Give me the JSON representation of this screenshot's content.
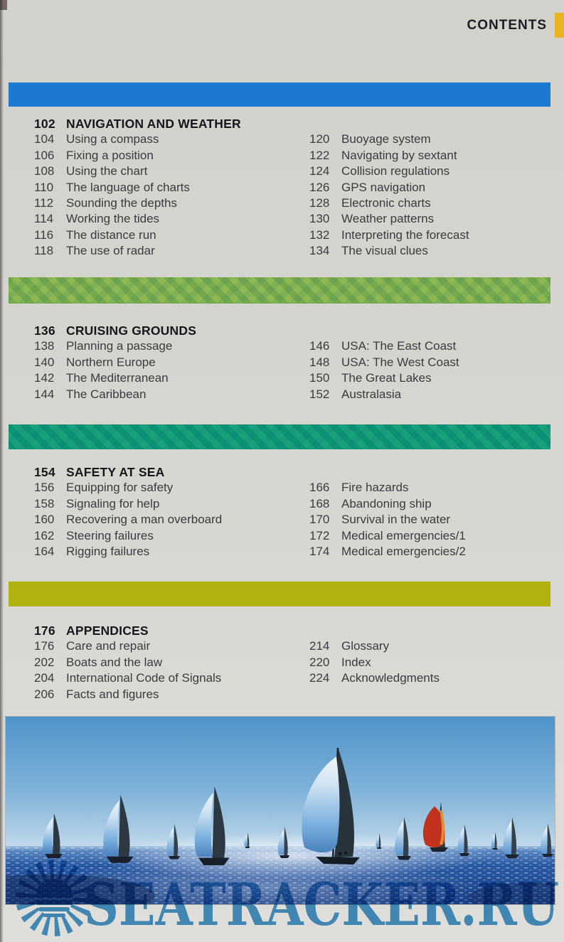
{
  "header": {
    "title": "CONTENTS"
  },
  "colors": {
    "page_bg": "#d6d5d0",
    "tab_yellow": "#e9b41f",
    "divider_blue": "#1b7ad0",
    "divider_green": "#86b548",
    "divider_teal": "#0d9c75",
    "divider_olive": "#b0b211",
    "watermark_blue": "#3a92cc",
    "heading_text": "#17171a",
    "body_text": "#3b3b3d"
  },
  "sections": [
    {
      "page": "102",
      "title": "NAVIGATION AND WEATHER",
      "left": [
        {
          "page": "104",
          "label": "Using a compass"
        },
        {
          "page": "106",
          "label": "Fixing a position"
        },
        {
          "page": "108",
          "label": "Using the chart"
        },
        {
          "page": "110",
          "label": "The language of charts"
        },
        {
          "page": "112",
          "label": "Sounding the depths"
        },
        {
          "page": "114",
          "label": "Working the tides"
        },
        {
          "page": "116",
          "label": "The distance run"
        },
        {
          "page": "118",
          "label": "The use of radar"
        }
      ],
      "right": [
        {
          "page": "120",
          "label": "Buoyage system"
        },
        {
          "page": "122",
          "label": "Navigating by sextant"
        },
        {
          "page": "124",
          "label": "Collision regulations"
        },
        {
          "page": "126",
          "label": "GPS navigation"
        },
        {
          "page": "128",
          "label": "Electronic charts"
        },
        {
          "page": "130",
          "label": "Weather patterns"
        },
        {
          "page": "132",
          "label": "Interpreting the forecast"
        },
        {
          "page": "134",
          "label": "The visual clues"
        }
      ]
    },
    {
      "page": "136",
      "title": "CRUISING GROUNDS",
      "left": [
        {
          "page": "138",
          "label": "Planning a passage"
        },
        {
          "page": "140",
          "label": "Northern Europe"
        },
        {
          "page": "142",
          "label": "The Mediterranean"
        },
        {
          "page": "144",
          "label": "The Caribbean"
        }
      ],
      "right": [
        {
          "page": "146",
          "label": "USA: The East Coast"
        },
        {
          "page": "148",
          "label": "USA: The West Coast"
        },
        {
          "page": "150",
          "label": "The Great Lakes"
        },
        {
          "page": "152",
          "label": "Australasia"
        }
      ]
    },
    {
      "page": "154",
      "title": "SAFETY AT SEA",
      "left": [
        {
          "page": "156",
          "label": "Equipping for safety"
        },
        {
          "page": "158",
          "label": "Signaling for help"
        },
        {
          "page": "160",
          "label": "Recovering a man overboard"
        },
        {
          "page": "162",
          "label": "Steering failures"
        },
        {
          "page": "164",
          "label": "Rigging failures"
        }
      ],
      "right": [
        {
          "page": "166",
          "label": "Fire hazards"
        },
        {
          "page": "168",
          "label": "Abandoning ship"
        },
        {
          "page": "170",
          "label": "Survival in the water"
        },
        {
          "page": "172",
          "label": "Medical emergencies/1"
        },
        {
          "page": "174",
          "label": "Medical emergencies/2"
        }
      ]
    },
    {
      "page": "176",
      "title": "APPENDICES",
      "left": [
        {
          "page": "176",
          "label": "Care and repair"
        },
        {
          "page": "202",
          "label": "Boats and the law"
        },
        {
          "page": "204",
          "label": "International Code of Signals"
        },
        {
          "page": "206",
          "label": "Facts and figures"
        }
      ],
      "right": [
        {
          "page": "214",
          "label": "Glossary"
        },
        {
          "page": "220",
          "label": "Index"
        },
        {
          "page": "224",
          "label": "Acknowledgments"
        }
      ]
    }
  ],
  "watermark": {
    "text": "SEATRACKER.RU",
    "icon": "sun-icon"
  }
}
